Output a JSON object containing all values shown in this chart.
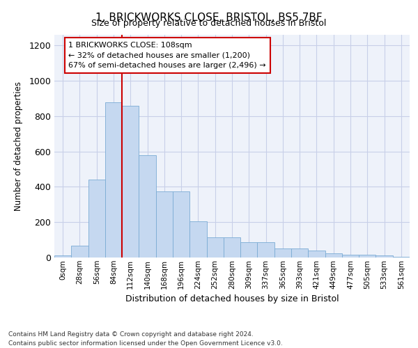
{
  "title": "1, BRICKWORKS CLOSE, BRISTOL, BS5 7BF",
  "subtitle": "Size of property relative to detached houses in Bristol",
  "xlabel": "Distribution of detached houses by size in Bristol",
  "ylabel": "Number of detached properties",
  "bar_values": [
    12,
    65,
    440,
    880,
    860,
    580,
    375,
    375,
    205,
    115,
    115,
    85,
    85,
    50,
    50,
    40,
    22,
    15,
    15,
    10,
    5
  ],
  "bin_labels": [
    "0sqm",
    "28sqm",
    "56sqm",
    "84sqm",
    "112sqm",
    "140sqm",
    "168sqm",
    "196sqm",
    "224sqm",
    "252sqm",
    "280sqm",
    "309sqm",
    "337sqm",
    "365sqm",
    "393sqm",
    "421sqm",
    "449sqm",
    "477sqm",
    "505sqm",
    "533sqm",
    "561sqm"
  ],
  "bar_color": "#c5d8f0",
  "bar_edge_color": "#7aabd4",
  "vline_x": 4.0,
  "vline_color": "#cc0000",
  "annotation_line1": "1 BRICKWORKS CLOSE: 108sqm",
  "annotation_line2": "← 32% of detached houses are smaller (1,200)",
  "annotation_line3": "67% of semi-detached houses are larger (2,496) →",
  "annotation_box_color": "#cc0000",
  "ylim": [
    0,
    1260
  ],
  "yticks": [
    0,
    200,
    400,
    600,
    800,
    1000,
    1200
  ],
  "footer_line1": "Contains HM Land Registry data © Crown copyright and database right 2024.",
  "footer_line2": "Contains public sector information licensed under the Open Government Licence v3.0.",
  "background_color": "#eef2fa",
  "grid_color": "#c8cfe8"
}
